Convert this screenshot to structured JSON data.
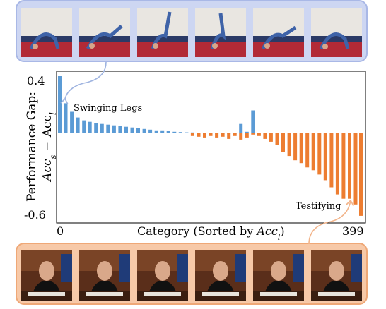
{
  "chart_data": {
    "type": "bar",
    "ylabel_line1": "Performance Gap:",
    "ylabel_line2_main": "Acc",
    "ylabel_line2_sub_s": "s",
    "ylabel_line2_minus": " − Acc",
    "ylabel_line2_sub_l": "l",
    "xlabel_main": "Category (Sorted by ",
    "xlabel_acc": "Acc",
    "xlabel_sub": "l",
    "xlabel_close": ")",
    "x_tick_labels": [
      "0",
      "399"
    ],
    "y_tick_labels": [
      "0.4",
      "-0.6"
    ],
    "ylim": [
      -0.62,
      0.42
    ],
    "xlim": [
      0,
      399
    ],
    "grid": false,
    "annotations": [
      {
        "text": "Swinging Legs",
        "x": 0
      },
      {
        "text": "Testifying",
        "x": 399
      }
    ],
    "series": [
      {
        "color": "#5b9bd5",
        "x": [
          0,
          8,
          16,
          24,
          32,
          40,
          48,
          56,
          64,
          72,
          80,
          88,
          96,
          104,
          112,
          120,
          128,
          136,
          144,
          152,
          160,
          168,
          176,
          184,
          192,
          200,
          208,
          216,
          224,
          232,
          240,
          248,
          256
        ],
        "values": [
          0.4,
          0.21,
          0.15,
          0.11,
          0.09,
          0.08,
          0.07,
          0.065,
          0.06,
          0.055,
          0.05,
          0.045,
          0.04,
          0.035,
          0.03,
          0.025,
          0.02,
          0.02,
          0.015,
          0.01,
          0.008,
          0.006,
          0.005,
          0.004,
          0.003,
          0.002,
          0.002,
          0.001,
          0.001,
          0.001,
          0.065,
          0.01,
          0.16
        ]
      },
      {
        "color": "#ed7d31",
        "x": [
          176,
          184,
          192,
          200,
          208,
          216,
          224,
          232,
          240,
          248,
          256,
          264,
          272,
          280,
          288,
          296,
          304,
          312,
          320,
          328,
          336,
          344,
          352,
          360,
          368,
          376,
          384,
          392,
          399
        ],
        "values": [
          -0.02,
          -0.025,
          -0.03,
          -0.02,
          -0.03,
          -0.025,
          -0.04,
          -0.02,
          -0.045,
          -0.03,
          -0.01,
          -0.02,
          -0.04,
          -0.06,
          -0.08,
          -0.13,
          -0.16,
          -0.19,
          -0.21,
          -0.24,
          -0.26,
          -0.29,
          -0.33,
          -0.38,
          -0.43,
          -0.46,
          -0.46,
          -0.5,
          -0.58
        ]
      }
    ]
  },
  "frames": {
    "top_count": 6,
    "bottom_count": 6
  },
  "colors": {
    "blue_bar": "#5b9bd5",
    "orange_bar": "#ed7d31",
    "top_strip_bg": "#cdd6f2",
    "bottom_strip_bg": "#f7c9a8"
  }
}
